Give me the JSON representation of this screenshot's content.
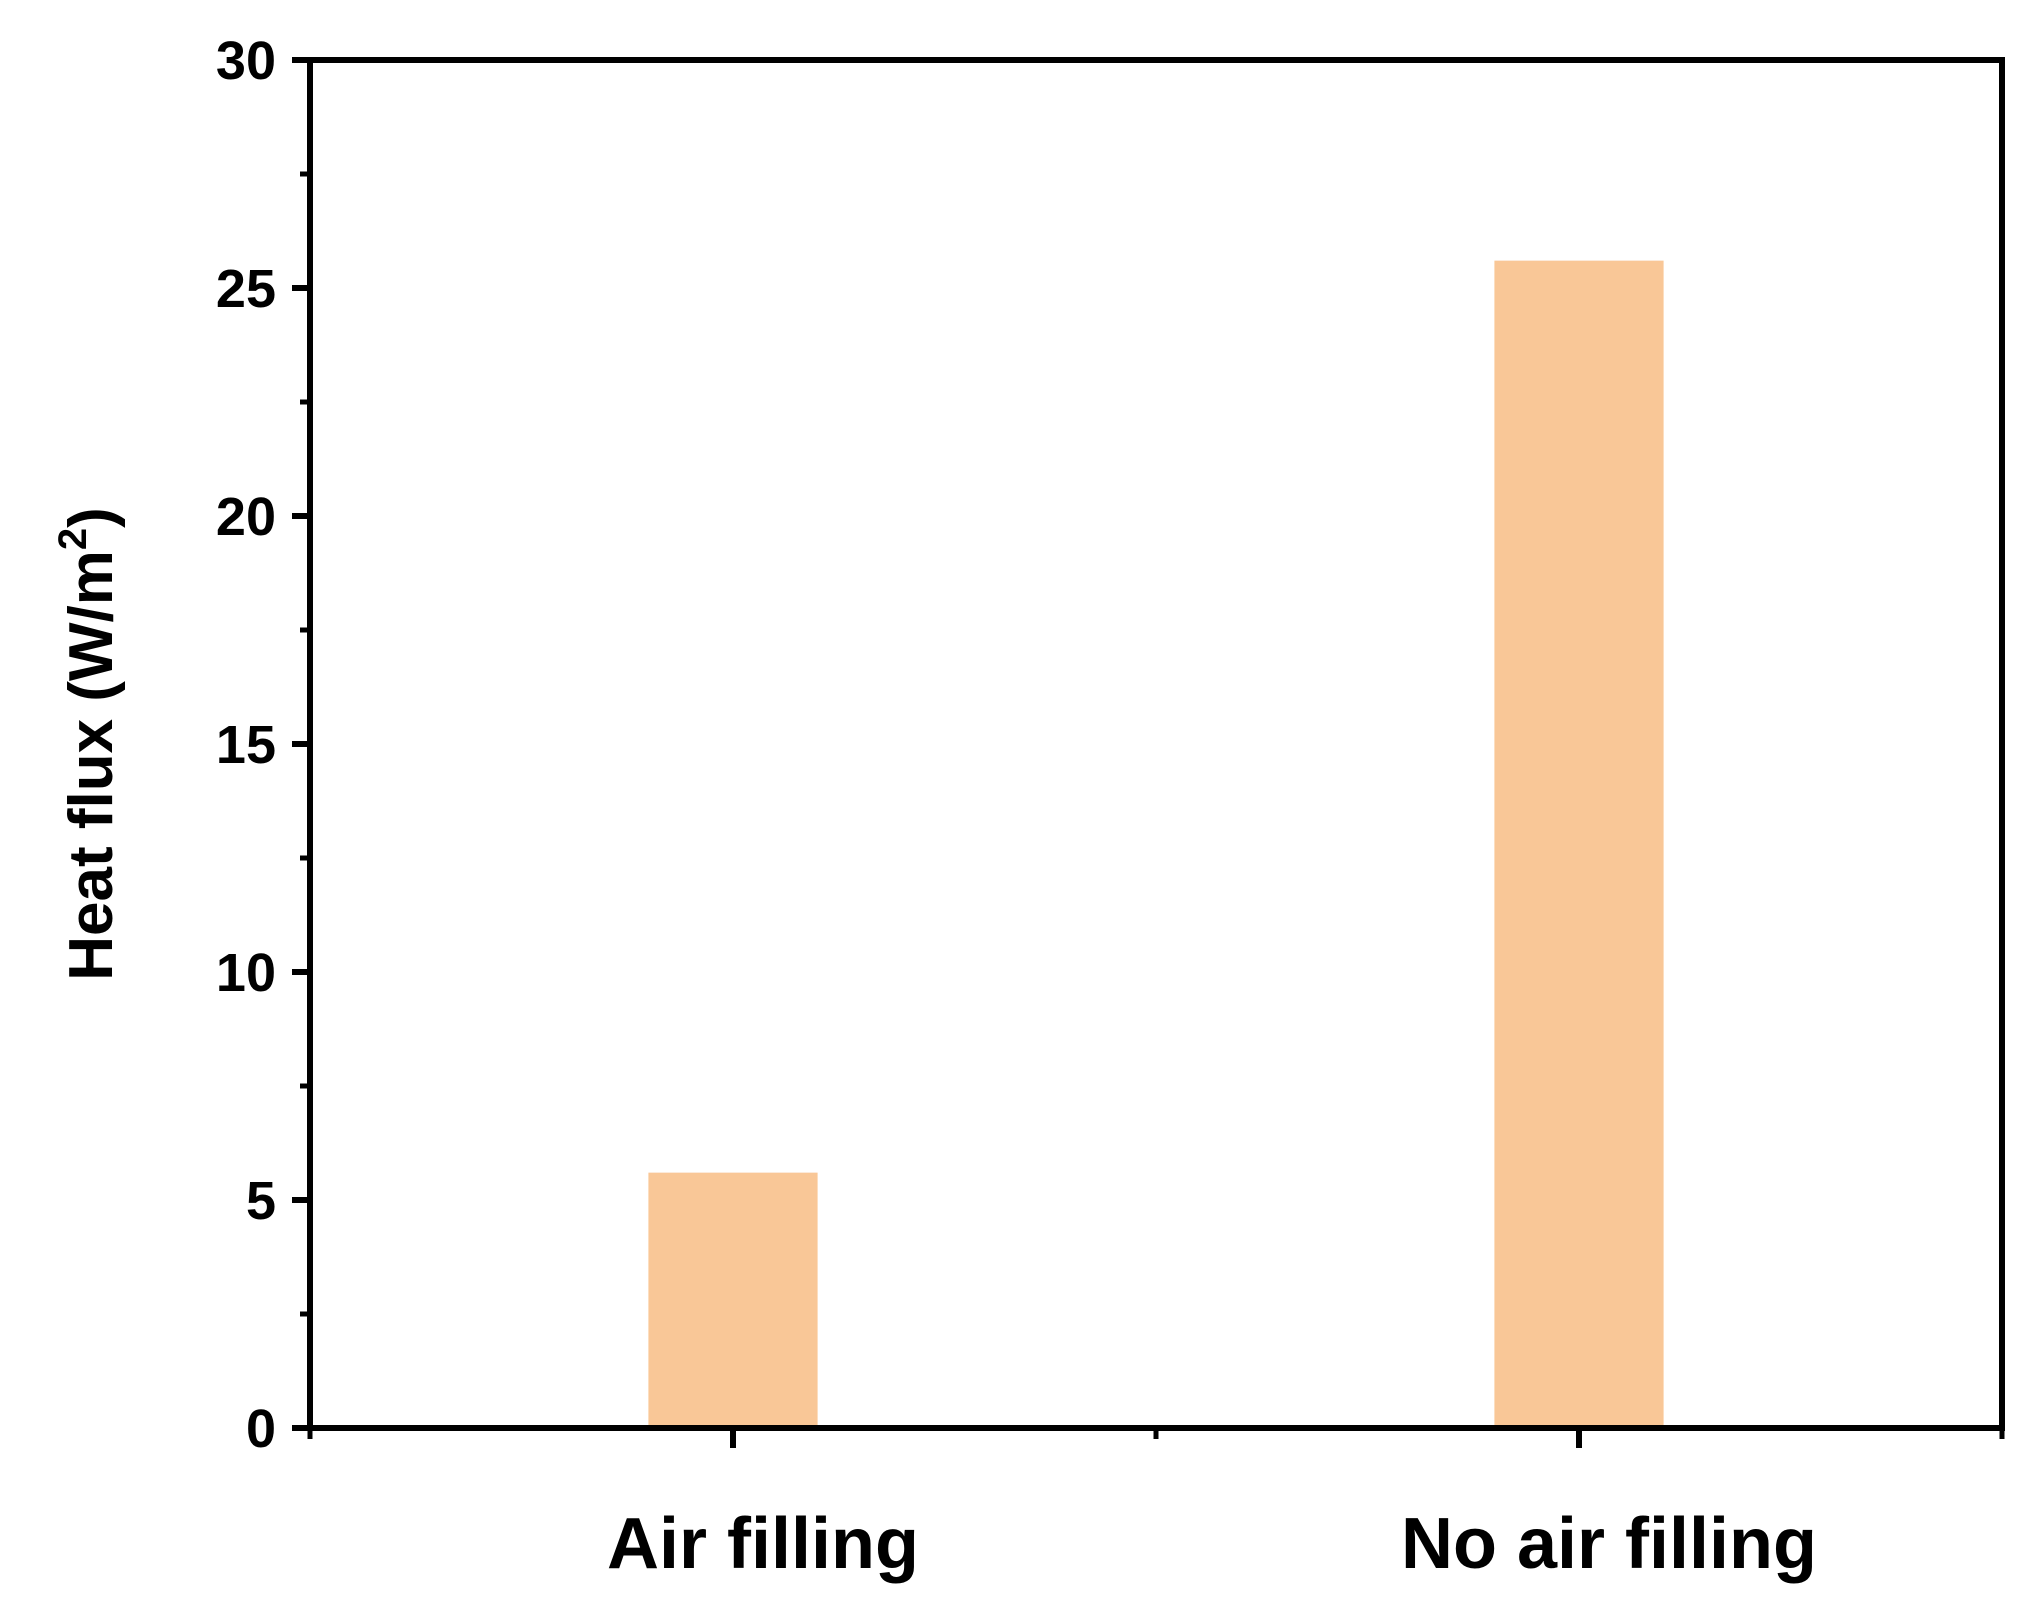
{
  "chart_data": {
    "type": "bar",
    "categories": [
      "Air filling",
      "No air filling"
    ],
    "values": [
      5.6,
      25.6
    ],
    "title": "",
    "xlabel": "",
    "ylabel": "Heat flux (W/m",
    "ylabel_superscript": "2",
    "ylabel_suffix": ")",
    "ylim": [
      0,
      30
    ],
    "yticks": [
      0,
      5,
      10,
      15,
      20,
      25,
      30
    ],
    "grid": false,
    "bar_color": "#F9C797"
  }
}
